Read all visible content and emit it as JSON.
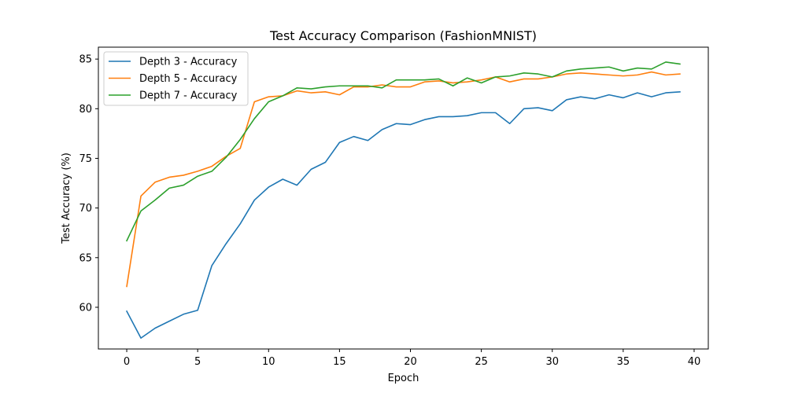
{
  "chart_data": {
    "type": "line",
    "title": "Test Accuracy Comparison (FashionMNIST)",
    "xlabel": "Epoch",
    "ylabel": "Test Accuracy (%)",
    "xlim": [
      -2,
      41
    ],
    "ylim": [
      55.8,
      86.2
    ],
    "xticks": [
      0,
      5,
      10,
      15,
      20,
      25,
      30,
      35,
      40
    ],
    "yticks": [
      60,
      65,
      70,
      75,
      80,
      85
    ],
    "grid": false,
    "legend_position": "top-left",
    "x": [
      0,
      1,
      2,
      3,
      4,
      5,
      6,
      7,
      8,
      9,
      10,
      11,
      12,
      13,
      14,
      15,
      16,
      17,
      18,
      19,
      20,
      21,
      22,
      23,
      24,
      25,
      26,
      27,
      28,
      29,
      30,
      31,
      32,
      33,
      34,
      35,
      36,
      37,
      38,
      39
    ],
    "series": [
      {
        "name": "Depth 3 - Accuracy",
        "color": "#1f77b4",
        "values": [
          59.6,
          56.9,
          57.9,
          58.6,
          59.3,
          59.7,
          64.2,
          66.4,
          68.4,
          70.8,
          72.1,
          72.9,
          72.3,
          73.9,
          74.6,
          76.6,
          77.2,
          76.8,
          77.9,
          78.5,
          78.4,
          78.9,
          79.2,
          79.2,
          79.3,
          79.6,
          79.6,
          78.5,
          80.0,
          80.1,
          79.8,
          80.9,
          81.2,
          81.0,
          81.4,
          81.1,
          81.6,
          81.2,
          81.6,
          81.7
        ]
      },
      {
        "name": "Depth 5 - Accuracy",
        "color": "#ff7f0e",
        "values": [
          62.1,
          71.2,
          72.6,
          73.1,
          73.3,
          73.7,
          74.2,
          75.2,
          76.0,
          80.7,
          81.2,
          81.3,
          81.8,
          81.6,
          81.7,
          81.4,
          82.2,
          82.2,
          82.4,
          82.2,
          82.2,
          82.7,
          82.8,
          82.6,
          82.7,
          82.9,
          83.2,
          82.7,
          83.0,
          83.0,
          83.2,
          83.5,
          83.6,
          83.5,
          83.4,
          83.3,
          83.4,
          83.7,
          83.4,
          83.5
        ]
      },
      {
        "name": "Depth 7 - Accuracy",
        "color": "#2ca02c",
        "values": [
          66.7,
          69.7,
          70.8,
          72.0,
          72.3,
          73.2,
          73.7,
          75.1,
          76.9,
          79.0,
          80.7,
          81.3,
          82.1,
          82.0,
          82.2,
          82.3,
          82.3,
          82.3,
          82.1,
          82.9,
          82.9,
          82.9,
          83.0,
          82.3,
          83.1,
          82.6,
          83.2,
          83.3,
          83.6,
          83.5,
          83.2,
          83.8,
          84.0,
          84.1,
          84.2,
          83.8,
          84.1,
          84.0,
          84.7,
          84.5
        ]
      }
    ]
  }
}
